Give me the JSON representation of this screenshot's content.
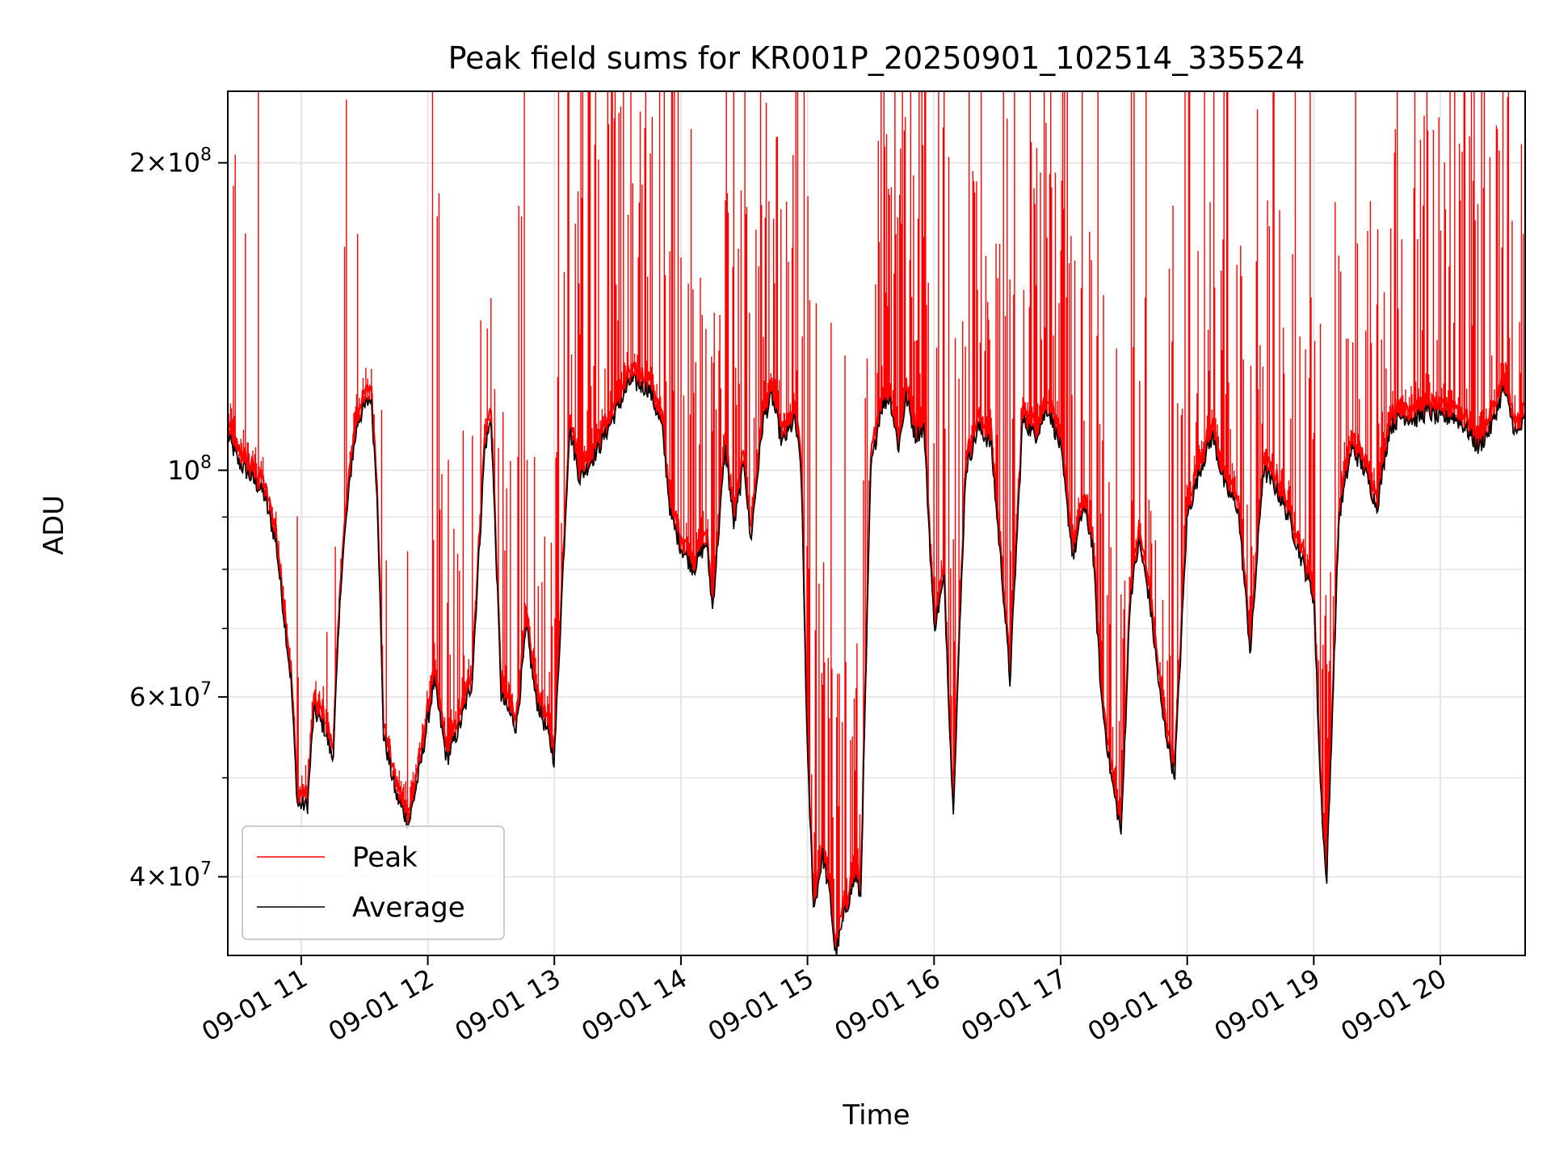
{
  "chart_data": {
    "type": "line",
    "title": "Peak field sums for KR001P_20250901_102514_335524",
    "xlabel": "Time",
    "ylabel": "ADU",
    "yscale": "log",
    "ylim": [
      33500000,
      235000000
    ],
    "xlim": [
      10.42,
      20.67
    ],
    "x_ticks": [
      {
        "x": 11,
        "label": "09-01 11"
      },
      {
        "x": 12,
        "label": "09-01 12"
      },
      {
        "x": 13,
        "label": "09-01 13"
      },
      {
        "x": 14,
        "label": "09-01 14"
      },
      {
        "x": 15,
        "label": "09-01 15"
      },
      {
        "x": 16,
        "label": "09-01 16"
      },
      {
        "x": 17,
        "label": "09-01 17"
      },
      {
        "x": 18,
        "label": "09-01 18"
      },
      {
        "x": 19,
        "label": "09-01 19"
      },
      {
        "x": 20,
        "label": "09-01 20"
      }
    ],
    "y_ticks": [
      {
        "y": 40000000,
        "mant": "4",
        "exp": "7"
      },
      {
        "y": 60000000,
        "mant": "6",
        "exp": "7"
      },
      {
        "y": 100000000,
        "mant": "",
        "exp": "8"
      },
      {
        "y": 200000000,
        "mant": "2",
        "exp": "8"
      }
    ],
    "y_minor_ticks": [
      50000000,
      70000000,
      80000000,
      90000000
    ],
    "grid": true,
    "legend_position": "lower-left",
    "series": [
      {
        "name": "Peak",
        "color": "#ff0000",
        "style": "dense spikes above average envelope",
        "baseline": [
          [
            10.42,
            108000000
          ],
          [
            10.5,
            102000000
          ],
          [
            10.7,
            95000000
          ],
          [
            10.8,
            85000000
          ],
          [
            10.92,
            62000000
          ],
          [
            10.97,
            47000000
          ],
          [
            11.05,
            47000000
          ],
          [
            11.1,
            58000000
          ],
          [
            11.18,
            56000000
          ],
          [
            11.25,
            52000000
          ],
          [
            11.32,
            80000000
          ],
          [
            11.4,
            102000000
          ],
          [
            11.45,
            112000000
          ],
          [
            11.55,
            118000000
          ],
          [
            11.6,
            95000000
          ],
          [
            11.65,
            55000000
          ],
          [
            11.75,
            48000000
          ],
          [
            11.85,
            45000000
          ],
          [
            11.95,
            52000000
          ],
          [
            12.05,
            62000000
          ],
          [
            12.15,
            52000000
          ],
          [
            12.25,
            56000000
          ],
          [
            12.35,
            62000000
          ],
          [
            12.45,
            105000000
          ],
          [
            12.5,
            112000000
          ],
          [
            12.58,
            60000000
          ],
          [
            12.7,
            56000000
          ],
          [
            12.78,
            70000000
          ],
          [
            12.85,
            60000000
          ],
          [
            12.95,
            55000000
          ],
          [
            13.0,
            52000000
          ],
          [
            13.12,
            110000000
          ],
          [
            13.2,
            98000000
          ],
          [
            13.35,
            105000000
          ],
          [
            13.5,
            115000000
          ],
          [
            13.6,
            122000000
          ],
          [
            13.75,
            120000000
          ],
          [
            13.85,
            110000000
          ],
          [
            13.92,
            90000000
          ],
          [
            14.0,
            84000000
          ],
          [
            14.1,
            80000000
          ],
          [
            14.2,
            85000000
          ],
          [
            14.25,
            73000000
          ],
          [
            14.35,
            105000000
          ],
          [
            14.42,
            88000000
          ],
          [
            14.5,
            102000000
          ],
          [
            14.55,
            85000000
          ],
          [
            14.65,
            112000000
          ],
          [
            14.72,
            118000000
          ],
          [
            14.8,
            106000000
          ],
          [
            14.9,
            112000000
          ],
          [
            14.95,
            100000000
          ],
          [
            15.0,
            52000000
          ],
          [
            15.05,
            37000000
          ],
          [
            15.12,
            42000000
          ],
          [
            15.18,
            38000000
          ],
          [
            15.22,
            33500000
          ],
          [
            15.3,
            37000000
          ],
          [
            15.38,
            40000000
          ],
          [
            15.42,
            38000000
          ],
          [
            15.5,
            100000000
          ],
          [
            15.58,
            115000000
          ],
          [
            15.65,
            118000000
          ],
          [
            15.72,
            105000000
          ],
          [
            15.78,
            118000000
          ],
          [
            15.85,
            108000000
          ],
          [
            15.92,
            110000000
          ],
          [
            16.0,
            70000000
          ],
          [
            16.08,
            78000000
          ],
          [
            16.15,
            46000000
          ],
          [
            16.25,
            100000000
          ],
          [
            16.35,
            110000000
          ],
          [
            16.45,
            106000000
          ],
          [
            16.55,
            75000000
          ],
          [
            16.6,
            62000000
          ],
          [
            16.7,
            112000000
          ],
          [
            16.8,
            108000000
          ],
          [
            16.9,
            115000000
          ],
          [
            17.0,
            105000000
          ],
          [
            17.05,
            92000000
          ],
          [
            17.1,
            82000000
          ],
          [
            17.18,
            92000000
          ],
          [
            17.25,
            85000000
          ],
          [
            17.32,
            60000000
          ],
          [
            17.4,
            50000000
          ],
          [
            17.48,
            44000000
          ],
          [
            17.55,
            75000000
          ],
          [
            17.62,
            85000000
          ],
          [
            17.7,
            75000000
          ],
          [
            17.8,
            58000000
          ],
          [
            17.9,
            50000000
          ],
          [
            18.0,
            90000000
          ],
          [
            18.1,
            100000000
          ],
          [
            18.2,
            108000000
          ],
          [
            18.3,
            96000000
          ],
          [
            18.4,
            92000000
          ],
          [
            18.5,
            66000000
          ],
          [
            18.6,
            100000000
          ],
          [
            18.7,
            96000000
          ],
          [
            18.8,
            90000000
          ],
          [
            18.9,
            82000000
          ],
          [
            19.0,
            75000000
          ],
          [
            19.05,
            50000000
          ],
          [
            19.1,
            39000000
          ],
          [
            19.2,
            90000000
          ],
          [
            19.3,
            105000000
          ],
          [
            19.4,
            100000000
          ],
          [
            19.5,
            92000000
          ],
          [
            19.6,
            110000000
          ],
          [
            19.7,
            113000000
          ],
          [
            19.8,
            112000000
          ],
          [
            19.9,
            114000000
          ],
          [
            20.0,
            112000000
          ],
          [
            20.1,
            113000000
          ],
          [
            20.2,
            110000000
          ],
          [
            20.3,
            105000000
          ],
          [
            20.4,
            110000000
          ],
          [
            20.5,
            120000000
          ],
          [
            20.6,
            108000000
          ],
          [
            20.67,
            112000000
          ]
        ]
      },
      {
        "name": "Average",
        "color": "#000000",
        "style": "smooth lower envelope",
        "points": [
          [
            10.42,
            108000000
          ],
          [
            10.5,
            102000000
          ],
          [
            10.7,
            95000000
          ],
          [
            10.8,
            85000000
          ],
          [
            10.92,
            62000000
          ],
          [
            10.97,
            47000000
          ],
          [
            11.05,
            47000000
          ],
          [
            11.1,
            58000000
          ],
          [
            11.18,
            56000000
          ],
          [
            11.25,
            52000000
          ],
          [
            11.32,
            80000000
          ],
          [
            11.4,
            102000000
          ],
          [
            11.45,
            112000000
          ],
          [
            11.55,
            118000000
          ],
          [
            11.6,
            95000000
          ],
          [
            11.65,
            55000000
          ],
          [
            11.75,
            48000000
          ],
          [
            11.85,
            45000000
          ],
          [
            11.95,
            52000000
          ],
          [
            12.05,
            62000000
          ],
          [
            12.15,
            52000000
          ],
          [
            12.25,
            56000000
          ],
          [
            12.35,
            62000000
          ],
          [
            12.45,
            105000000
          ],
          [
            12.5,
            112000000
          ],
          [
            12.58,
            60000000
          ],
          [
            12.7,
            56000000
          ],
          [
            12.78,
            70000000
          ],
          [
            12.85,
            60000000
          ],
          [
            12.95,
            55000000
          ],
          [
            13.0,
            52000000
          ],
          [
            13.12,
            110000000
          ],
          [
            13.2,
            98000000
          ],
          [
            13.35,
            105000000
          ],
          [
            13.5,
            115000000
          ],
          [
            13.6,
            122000000
          ],
          [
            13.75,
            120000000
          ],
          [
            13.85,
            110000000
          ],
          [
            13.92,
            90000000
          ],
          [
            14.0,
            84000000
          ],
          [
            14.1,
            80000000
          ],
          [
            14.2,
            85000000
          ],
          [
            14.25,
            73000000
          ],
          [
            14.35,
            105000000
          ],
          [
            14.42,
            88000000
          ],
          [
            14.5,
            102000000
          ],
          [
            14.55,
            85000000
          ],
          [
            14.65,
            112000000
          ],
          [
            14.72,
            118000000
          ],
          [
            14.8,
            106000000
          ],
          [
            14.9,
            112000000
          ],
          [
            14.95,
            100000000
          ],
          [
            15.0,
            52000000
          ],
          [
            15.05,
            37000000
          ],
          [
            15.12,
            42000000
          ],
          [
            15.18,
            38000000
          ],
          [
            15.22,
            33500000
          ],
          [
            15.3,
            37000000
          ],
          [
            15.38,
            40000000
          ],
          [
            15.42,
            38000000
          ],
          [
            15.5,
            100000000
          ],
          [
            15.58,
            115000000
          ],
          [
            15.65,
            118000000
          ],
          [
            15.72,
            105000000
          ],
          [
            15.78,
            118000000
          ],
          [
            15.85,
            108000000
          ],
          [
            15.92,
            110000000
          ],
          [
            16.0,
            70000000
          ],
          [
            16.08,
            78000000
          ],
          [
            16.15,
            46000000
          ],
          [
            16.25,
            100000000
          ],
          [
            16.35,
            110000000
          ],
          [
            16.45,
            106000000
          ],
          [
            16.55,
            75000000
          ],
          [
            16.6,
            62000000
          ],
          [
            16.7,
            112000000
          ],
          [
            16.8,
            108000000
          ],
          [
            16.9,
            115000000
          ],
          [
            17.0,
            105000000
          ],
          [
            17.05,
            92000000
          ],
          [
            17.1,
            82000000
          ],
          [
            17.18,
            92000000
          ],
          [
            17.25,
            85000000
          ],
          [
            17.32,
            60000000
          ],
          [
            17.4,
            50000000
          ],
          [
            17.48,
            44000000
          ],
          [
            17.55,
            75000000
          ],
          [
            17.62,
            85000000
          ],
          [
            17.7,
            75000000
          ],
          [
            17.8,
            58000000
          ],
          [
            17.9,
            50000000
          ],
          [
            18.0,
            90000000
          ],
          [
            18.1,
            100000000
          ],
          [
            18.2,
            108000000
          ],
          [
            18.3,
            96000000
          ],
          [
            18.4,
            92000000
          ],
          [
            18.5,
            66000000
          ],
          [
            18.6,
            100000000
          ],
          [
            18.7,
            96000000
          ],
          [
            18.8,
            90000000
          ],
          [
            18.9,
            82000000
          ],
          [
            19.0,
            75000000
          ],
          [
            19.05,
            50000000
          ],
          [
            19.1,
            39000000
          ],
          [
            19.2,
            90000000
          ],
          [
            19.3,
            105000000
          ],
          [
            19.4,
            100000000
          ],
          [
            19.5,
            92000000
          ],
          [
            19.6,
            110000000
          ],
          [
            19.7,
            113000000
          ],
          [
            19.8,
            112000000
          ],
          [
            19.9,
            114000000
          ],
          [
            20.0,
            112000000
          ],
          [
            20.1,
            113000000
          ],
          [
            20.2,
            110000000
          ],
          [
            20.3,
            105000000
          ],
          [
            20.4,
            110000000
          ],
          [
            20.5,
            120000000
          ],
          [
            20.6,
            108000000
          ],
          [
            20.67,
            112000000
          ]
        ]
      }
    ]
  }
}
